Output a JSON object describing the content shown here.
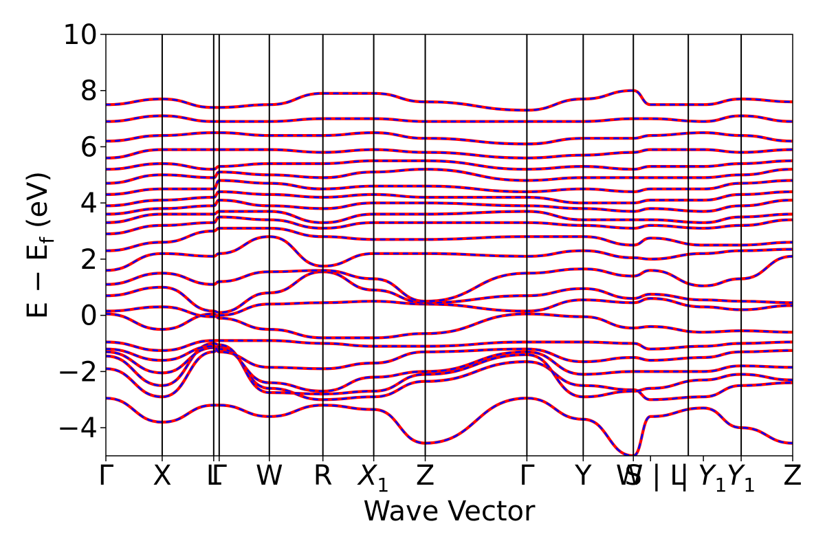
{
  "chart_data": {
    "type": "line",
    "title": "",
    "xlabel": "Wave Vector",
    "ylabel_parts": {
      "main": "E − E",
      "sub": "f",
      "unit": " (eV)"
    },
    "ylim": [
      -5,
      10
    ],
    "y_ticks": [
      -4,
      -2,
      0,
      2,
      4,
      6,
      8,
      10
    ],
    "y_tick_labels": [
      "−4",
      "−2",
      "0",
      "2",
      "4",
      "6",
      "8",
      "10"
    ],
    "grid": false,
    "legend": "none",
    "x_range": [
      0,
      1
    ],
    "kpoints": [
      {
        "x": 0.0,
        "label": "Γ",
        "sub": ""
      },
      {
        "x": 0.082,
        "label": "X",
        "sub": ""
      },
      {
        "x": 0.157,
        "label": "L",
        "sub": ""
      },
      {
        "x": 0.165,
        "label": "Γ",
        "sub": ""
      },
      {
        "x": 0.238,
        "label": "W",
        "sub": ""
      },
      {
        "x": 0.316,
        "label": "R",
        "sub": ""
      },
      {
        "x": 0.39,
        "label": "X",
        "sub": "1"
      },
      {
        "x": 0.465,
        "label": "Z",
        "sub": ""
      },
      {
        "x": 0.613,
        "label": "Γ",
        "sub": ""
      },
      {
        "x": 0.695,
        "label": "Y",
        "sub": ""
      },
      {
        "x": 0.768,
        "label": "S",
        "sub": ""
      },
      {
        "x": 0.793,
        "label": "W | L",
        "sub": ""
      },
      {
        "x": 0.87,
        "label": "| Y",
        "sub": "1"
      },
      {
        "x": 0.925,
        "label": "Y",
        "sub": "1"
      },
      {
        "x": 1.0,
        "label": "Z",
        "sub": ""
      }
    ],
    "vlines_x": [
      0.082,
      0.157,
      0.165,
      0.238,
      0.316,
      0.39,
      0.465,
      0.613,
      0.695,
      0.768,
      0.848,
      0.925
    ],
    "series_style": [
      {
        "color": "#ff0000",
        "style": "solid"
      },
      {
        "color": "#0000ff",
        "style": "dashed"
      }
    ],
    "bands": [
      [
        -2.95,
        -3.8,
        -3.2,
        -3.2,
        -3.6,
        -3.2,
        -3.35,
        -4.55,
        -2.95,
        -3.7,
        -5.0,
        -3.6,
        -3.3,
        -4.0,
        -4.55
      ],
      [
        -1.9,
        -2.9,
        -1.3,
        -1.1,
        -2.6,
        -3.0,
        -2.9,
        -2.35,
        -1.65,
        -2.5,
        -2.65,
        -3.0,
        -2.9,
        -2.5,
        -2.4
      ],
      [
        -1.45,
        -2.5,
        -1.0,
        -1.05,
        -2.75,
        -2.8,
        -2.7,
        -2.1,
        -1.4,
        -2.9,
        -2.7,
        -2.6,
        -2.3,
        -2.1,
        -2.3
      ],
      [
        -1.3,
        -2.05,
        -1.15,
        -1.2,
        -2.4,
        -2.7,
        -2.2,
        -2.0,
        -1.3,
        -2.1,
        -2.0,
        -2.0,
        -2.0,
        -1.8,
        -1.85
      ],
      [
        -1.2,
        -1.6,
        -1.1,
        -1.3,
        -1.85,
        -1.9,
        -1.7,
        -1.3,
        -1.2,
        -1.65,
        -1.5,
        -1.6,
        -1.5,
        -1.3,
        -1.25
      ],
      [
        -0.95,
        -1.25,
        -0.9,
        -0.9,
        -0.9,
        -1.0,
        -1.1,
        -1.1,
        -0.95,
        -0.95,
        -1.0,
        -1.2,
        -1.1,
        -1.0,
        -0.95
      ],
      [
        0.05,
        -0.5,
        0.05,
        -0.1,
        -0.5,
        -0.8,
        -0.8,
        -0.65,
        0.05,
        -0.05,
        -0.45,
        -0.4,
        -0.6,
        -0.55,
        -0.6
      ],
      [
        0.15,
        0.3,
        -0.05,
        0.0,
        0.4,
        0.45,
        0.5,
        0.4,
        0.15,
        0.55,
        0.45,
        0.6,
        0.3,
        0.2,
        0.35
      ],
      [
        0.7,
        1.0,
        0.15,
        0.1,
        0.8,
        1.55,
        0.9,
        0.45,
        0.7,
        0.95,
        0.6,
        0.75,
        0.55,
        0.5,
        0.45
      ],
      [
        1.1,
        1.5,
        1.1,
        1.2,
        1.55,
        1.6,
        1.3,
        0.5,
        1.5,
        1.65,
        1.4,
        1.6,
        1.05,
        1.3,
        2.1
      ],
      [
        1.6,
        2.2,
        2.1,
        2.2,
        2.8,
        1.75,
        2.2,
        2.2,
        2.1,
        2.3,
        2.05,
        2.0,
        2.2,
        2.3,
        2.35
      ],
      [
        2.3,
        2.6,
        3.0,
        3.1,
        3.1,
        2.8,
        2.7,
        2.7,
        2.8,
        2.8,
        2.5,
        2.75,
        2.5,
        2.5,
        2.6
      ],
      [
        2.9,
        3.2,
        3.3,
        3.5,
        3.4,
        3.1,
        3.3,
        3.3,
        3.3,
        3.2,
        3.1,
        3.2,
        3.1,
        3.2,
        3.4
      ],
      [
        3.3,
        3.6,
        3.6,
        3.7,
        3.7,
        3.3,
        3.6,
        3.6,
        3.7,
        3.4,
        3.4,
        3.4,
        3.3,
        3.5,
        3.6
      ],
      [
        3.6,
        3.8,
        3.9,
        4.1,
        3.9,
        3.8,
        4.0,
        4.0,
        3.9,
        3.8,
        3.7,
        3.8,
        3.7,
        3.9,
        4.1
      ],
      [
        3.9,
        4.1,
        4.2,
        4.4,
        4.3,
        4.2,
        4.3,
        4.2,
        4.2,
        4.0,
        4.0,
        4.1,
        4.1,
        4.3,
        4.4
      ],
      [
        4.3,
        4.5,
        4.5,
        4.8,
        4.7,
        4.5,
        4.6,
        4.6,
        4.4,
        4.5,
        4.4,
        4.5,
        4.5,
        4.7,
        4.8
      ],
      [
        4.7,
        5.0,
        4.9,
        5.1,
        5.0,
        4.9,
        5.1,
        5.2,
        4.8,
        4.9,
        4.9,
        4.9,
        4.9,
        5.0,
        5.2
      ],
      [
        5.2,
        5.4,
        5.2,
        5.3,
        5.4,
        5.4,
        5.5,
        5.5,
        5.2,
        5.3,
        5.2,
        5.3,
        5.3,
        5.4,
        5.5
      ],
      [
        5.6,
        5.9,
        5.9,
        5.9,
        5.9,
        5.8,
        5.9,
        5.8,
        5.6,
        5.7,
        5.8,
        5.9,
        5.9,
        5.8,
        5.9
      ],
      [
        6.2,
        6.4,
        6.5,
        6.5,
        6.4,
        6.4,
        6.5,
        6.3,
        6.1,
        6.3,
        6.3,
        6.4,
        6.5,
        6.4,
        6.2
      ],
      [
        6.9,
        7.1,
        6.9,
        6.9,
        6.9,
        7.0,
        7.0,
        6.9,
        6.9,
        6.9,
        7.0,
        7.0,
        6.9,
        7.1,
        6.9
      ],
      [
        7.5,
        7.7,
        7.4,
        7.4,
        7.5,
        7.9,
        7.9,
        7.6,
        7.3,
        7.7,
        8.0,
        7.5,
        7.5,
        7.7,
        7.6
      ]
    ]
  }
}
